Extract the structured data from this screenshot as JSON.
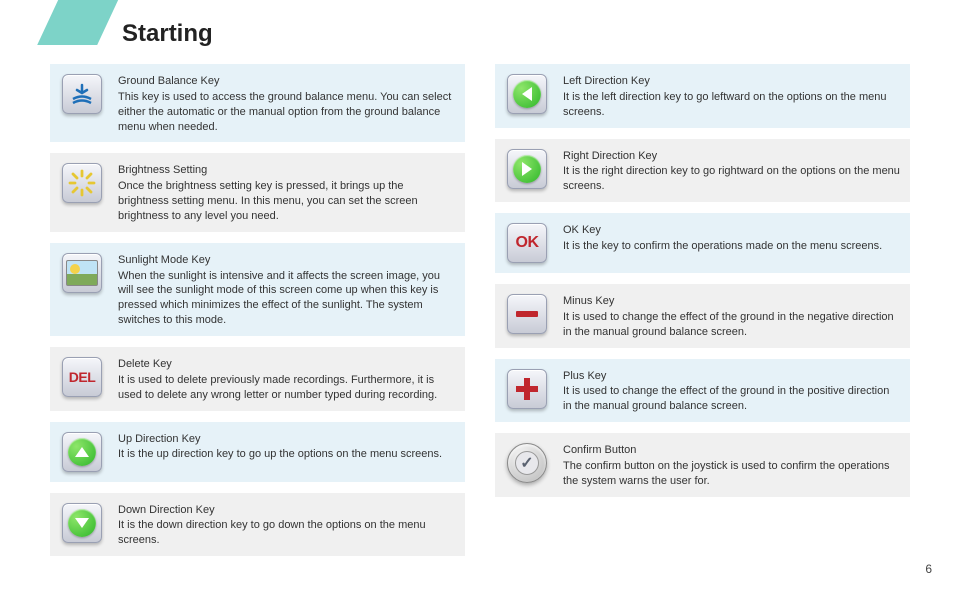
{
  "page": {
    "title": "Starting",
    "number": "6"
  },
  "colors": {
    "accent": "#7dd3c8",
    "row_a": "#e6f2f8",
    "row_b": "#f0f0f0",
    "red": "#c0262d",
    "green": "#2eb629",
    "blue": "#1e6fb8"
  },
  "left": [
    {
      "icon": "ground-balance",
      "title": "Ground Balance Key",
      "desc": "This key is used to access the ground balance menu. You can select either the automatic or the manual option from the ground balance menu when needed."
    },
    {
      "icon": "brightness",
      "title": "Brightness Setting",
      "desc": "Once the brightness setting key is pressed, it brings up the brightness setting menu. In this menu, you can set the screen brightness to any level you need."
    },
    {
      "icon": "sunlight",
      "title": "Sunlight Mode Key",
      "desc": "When the sunlight is intensive and it affects the screen image, you will see the sunlight mode of this screen come up when this key is pressed which minimizes the effect of the sunlight. The system switches to this mode."
    },
    {
      "icon": "del",
      "title": "Delete Key",
      "desc": "It is used to delete previously made recordings. Furthermore, it is used to delete any wrong letter or number typed during recording."
    },
    {
      "icon": "up",
      "title": "Up Direction Key",
      "desc": "It is the up direction key to go up the options on the menu screens."
    },
    {
      "icon": "down",
      "title": "Down Direction Key",
      "desc": "It is the down direction key to go down the options on the menu screens."
    }
  ],
  "right": [
    {
      "icon": "left",
      "title": "Left Direction Key",
      "desc": "It is the left direction key to go leftward on the options on the menu screens."
    },
    {
      "icon": "right",
      "title": "Right Direction Key",
      "desc": "It is the right direction key to go rightward on the options on the menu screens."
    },
    {
      "icon": "ok",
      "title": "OK Key",
      "desc": "It is the key to confirm the operations made on the menu screens."
    },
    {
      "icon": "minus",
      "title": "Minus Key",
      "desc": "It is used to change the effect of the ground in the negative direction in the manual ground balance screen."
    },
    {
      "icon": "plus",
      "title": "Plus Key",
      "desc": "It is used to change the effect of the ground in the positive direction in the manual ground balance screen."
    },
    {
      "icon": "confirm",
      "title": "Confirm Button",
      "desc": "The confirm button on the joystick is used to confirm the operations the system warns the user for."
    }
  ]
}
